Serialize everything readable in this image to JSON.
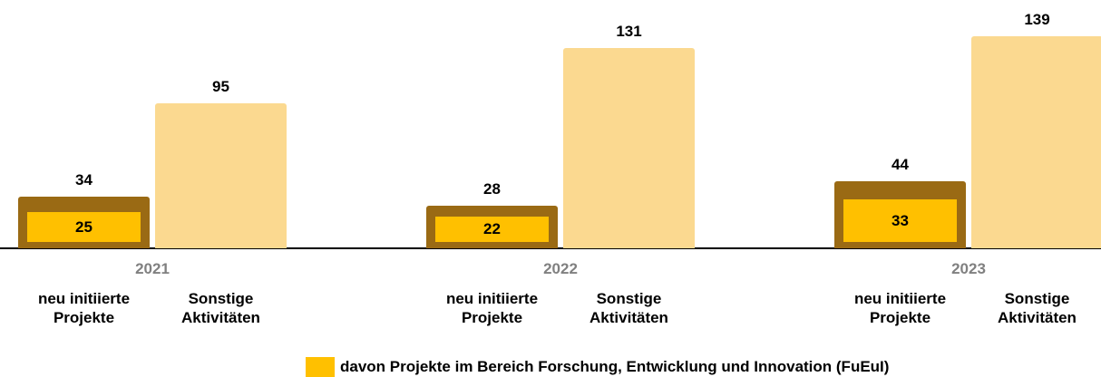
{
  "chart_data": {
    "type": "bar",
    "categories": [
      "2021",
      "2022",
      "2023"
    ],
    "series": [
      {
        "name": "neu initiierte Projekte",
        "color": "#9a6a14",
        "values": [
          34,
          28,
          44
        ]
      },
      {
        "name": "Sonstige Aktivitäten",
        "color": "#fbd990",
        "values": [
          95,
          131,
          139
        ]
      },
      {
        "name": "davon Projekte im Bereich Forschung, Entwicklung und Innovation (FuEuI)",
        "color": "#ffc000",
        "values": [
          25,
          22,
          33
        ]
      }
    ],
    "legend": "bottom"
  }
}
